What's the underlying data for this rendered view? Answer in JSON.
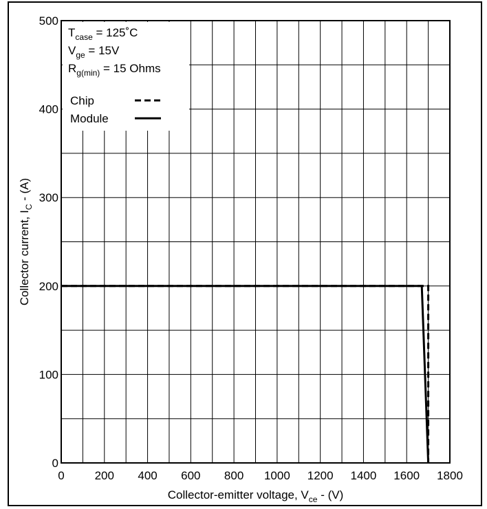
{
  "chart_data": {
    "type": "line",
    "xlabel": {
      "main": "Collector-emitter voltage, V",
      "sub": "ce",
      "tail": " - (V)"
    },
    "ylabel": {
      "main": "Collector current, I",
      "sub": "C",
      "tail": " - (A)"
    },
    "xlim": [
      0,
      1800
    ],
    "ylim": [
      0,
      500
    ],
    "x_ticks": [
      "0",
      "200",
      "400",
      "600",
      "800",
      "1000",
      "1200",
      "1400",
      "1600",
      "1800"
    ],
    "y_ticks": [
      "0",
      "100",
      "200",
      "300",
      "400",
      "500"
    ],
    "grid": true,
    "conditions": [
      {
        "main": "T",
        "sub": "case",
        "tail": " = 125˚C"
      },
      {
        "main": "V",
        "sub": "ge",
        "tail": " = 15V"
      },
      {
        "main": "R",
        "sub": "g(min)",
        "tail": " = 15 Ohms"
      }
    ],
    "legend_position": "top-left",
    "series": [
      {
        "name": "Chip",
        "style": "dashed",
        "x": [
          0,
          1700,
          1700
        ],
        "y": [
          200,
          200,
          0
        ]
      },
      {
        "name": "Module",
        "style": "solid",
        "x": [
          0,
          1670,
          1700,
          1700
        ],
        "y": [
          200,
          200,
          0,
          0
        ]
      }
    ]
  }
}
